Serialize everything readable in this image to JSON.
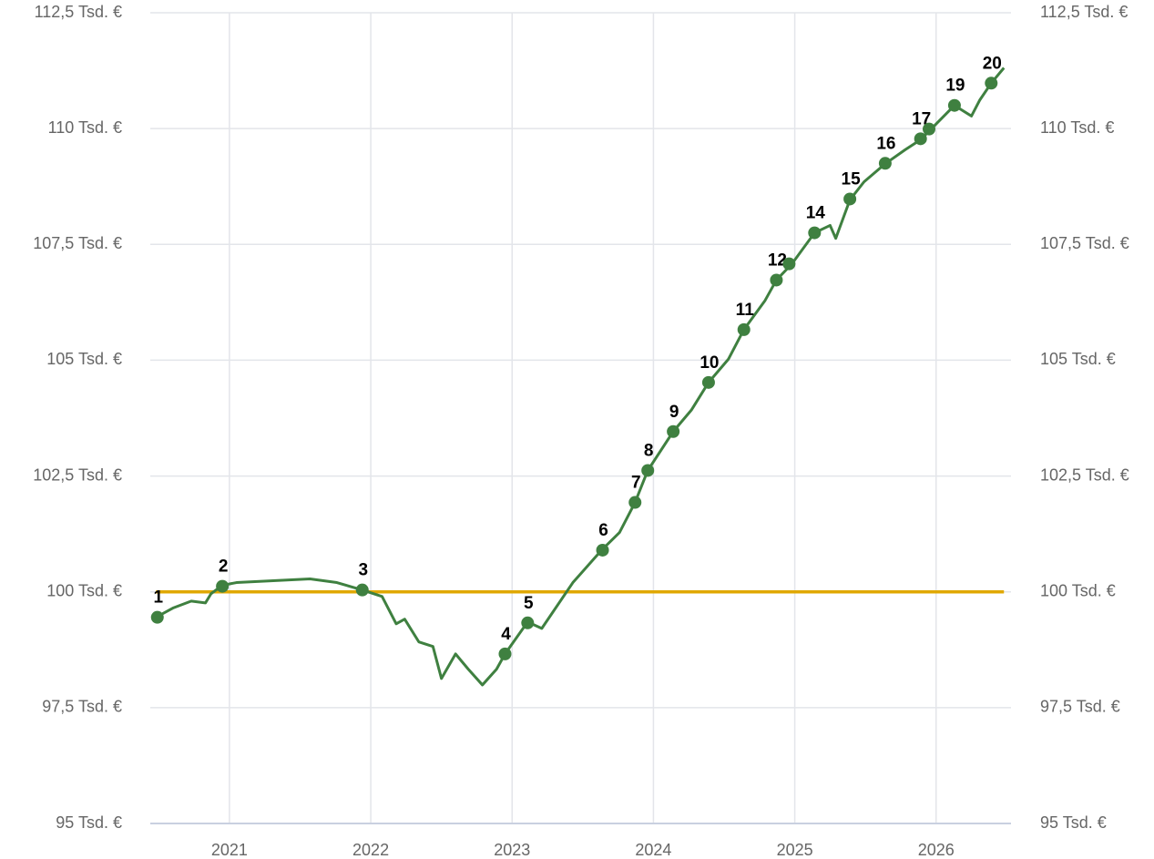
{
  "chart_data": {
    "type": "line",
    "xlim": [
      2020.44,
      2026.53
    ],
    "xticks": [
      2021,
      2022,
      2023,
      2024,
      2025,
      2026
    ],
    "ylim": [
      95,
      112.5
    ],
    "yticks": [
      {
        "value": 95,
        "label": "95 Tsd. €"
      },
      {
        "value": 97.5,
        "label": "97,5 Tsd. €"
      },
      {
        "value": 100,
        "label": "100 Tsd. €"
      },
      {
        "value": 102.5,
        "label": "102,5 Tsd. €"
      },
      {
        "value": 105,
        "label": "105 Tsd. €"
      },
      {
        "value": 107.5,
        "label": "107,5 Tsd. €"
      },
      {
        "value": 110,
        "label": "110 Tsd. €"
      },
      {
        "value": 112.5,
        "label": "112,5 Tsd. €"
      }
    ],
    "grid": true,
    "series": [
      {
        "color": "#3f8040",
        "x": [
          2020.48,
          2020.6,
          2020.73,
          2020.83,
          2020.87,
          2020.95,
          2021.05,
          2021.31,
          2021.57,
          2021.76,
          2021.94,
          2022.08,
          2022.18,
          2022.24,
          2022.34,
          2022.44,
          2022.5,
          2022.6,
          2022.69,
          2022.79,
          2022.89,
          2022.95,
          2023.11,
          2023.21,
          2023.43,
          2023.63,
          2023.76,
          2023.87,
          2023.96,
          2024.14,
          2024.27,
          2024.39,
          2024.53,
          2024.64,
          2024.79,
          2024.87,
          2024.98,
          2025.14,
          2025.25,
          2025.29,
          2025.39,
          2025.49,
          2025.64,
          2025.78,
          2025.89,
          2026.01,
          2026.13,
          2026.25,
          2026.31,
          2026.39,
          2026.48
        ],
        "values": [
          99.45,
          99.65,
          99.8,
          99.76,
          99.96,
          100.14,
          100.2,
          100.24,
          100.28,
          100.2,
          100.04,
          99.9,
          99.31,
          99.41,
          98.92,
          98.82,
          98.13,
          98.66,
          98.33,
          97.99,
          98.33,
          98.66,
          99.35,
          99.21,
          100.2,
          100.89,
          101.28,
          101.93,
          102.62,
          103.46,
          103.93,
          104.52,
          105.02,
          105.66,
          106.29,
          106.73,
          107.08,
          107.75,
          107.91,
          107.63,
          108.46,
          108.85,
          109.24,
          109.54,
          109.76,
          110.13,
          110.5,
          110.27,
          110.62,
          110.98,
          111.31
        ]
      }
    ],
    "reference": {
      "value": 100,
      "color": "#e0a800"
    },
    "markers": {
      "color": "#3f8040",
      "x": [
        2020.49,
        2020.95,
        2021.94,
        2022.95,
        2023.11,
        2023.64,
        2023.87,
        2023.96,
        2024.14,
        2024.39,
        2024.64,
        2024.87,
        2024.96,
        2025.14,
        2025.39,
        2025.64,
        2025.89,
        2025.95,
        2026.13,
        2026.39
      ],
      "values": [
        99.45,
        100.12,
        100.04,
        98.66,
        99.33,
        100.9,
        101.93,
        102.62,
        103.46,
        104.52,
        105.66,
        106.73,
        107.08,
        107.75,
        108.48,
        109.25,
        109.78,
        109.99,
        110.5,
        110.98
      ],
      "labels": [
        "1",
        "2",
        "3",
        "4",
        "5",
        "6",
        "7",
        "8",
        "9",
        "10",
        "11",
        "12",
        null,
        "14",
        "15",
        "16",
        "17",
        null,
        "19",
        "20"
      ]
    }
  }
}
